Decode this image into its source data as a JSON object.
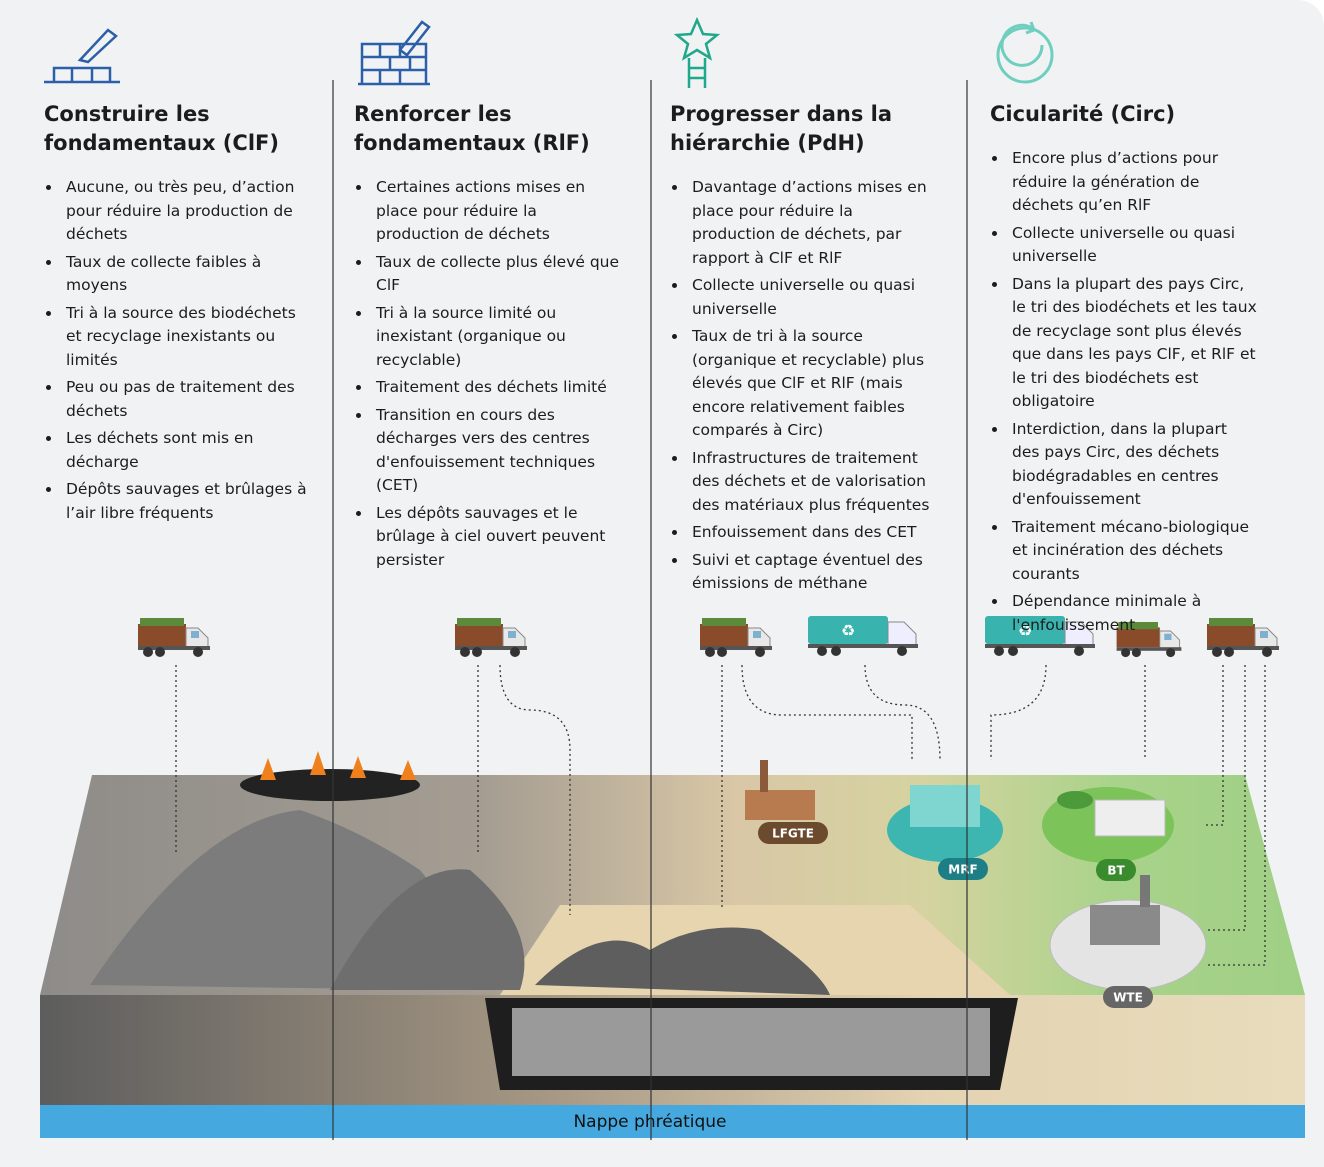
{
  "columns": [
    {
      "title": "Construire les fondamentaux (ClF)",
      "bullets": [
        "Aucune, ou très peu, d’action pour réduire la production de déchets",
        "Taux de collecte faibles à moyens",
        "Tri à la source des biodéchets et recyclage inexistants ou limités",
        "Peu ou pas de traitement des déchets",
        "Les déchets sont mis en décharge",
        "Dépôts sauvages et brûlages à l’air libre fréquents"
      ]
    },
    {
      "title": "Renforcer les fondamentaux (RlF)",
      "bullets": [
        "Certaines actions mises en place pour réduire la production de déchets",
        "Taux de collecte plus élevé que ClF",
        "Tri à la source limité ou inexistant (organique ou recyclable)",
        "Traitement des déchets limité",
        "Transition en cours des décharges vers des centres d'enfouissement techniques (CET)",
        "Les dépôts sauvages et le brûlage à ciel ouvert peuvent persister"
      ]
    },
    {
      "title": "Progresser dans la hiérarchie (PdH)",
      "bullets": [
        "Davantage d’actions mises en place pour réduire la production de déchets, par rapport à ClF et RlF",
        "Collecte universelle ou quasi universelle",
        "Taux de tri à la source (organique et recyclable) plus élevés que ClF et RlF (mais encore relativement faibles comparés à Circ)",
        "Infrastructures de traitement des déchets et de valorisation des matériaux plus fréquentes",
        "Enfouissement dans des CET",
        "Suivi et captage éventuel des émissions de méthane"
      ]
    },
    {
      "title": "Cicularité (Circ)",
      "bullets": [
        "Encore plus d’actions pour réduire la génération de déchets qu’en RlF",
        "Collecte universelle ou quasi universelle",
        "Dans la plupart des pays Circ, le tri des biodéchets et les taux de recyclage sont plus élevés que dans les pays ClF, et RlF et le tri des biodéchets est obligatoire",
        "Interdiction, dans la plupart des pays Circ, des déchets biodégradables en centres d'enfouissement",
        "Traitement mécano-biologique et incinération des déchets courants",
        "Dépendance minimale à l'enfouissement"
      ]
    }
  ],
  "labels": {
    "lfgte": "LFGTE",
    "mrf": "MRF",
    "bt": "BT",
    "wte": "WTE",
    "groundwater": "Nappe phréatique"
  }
}
